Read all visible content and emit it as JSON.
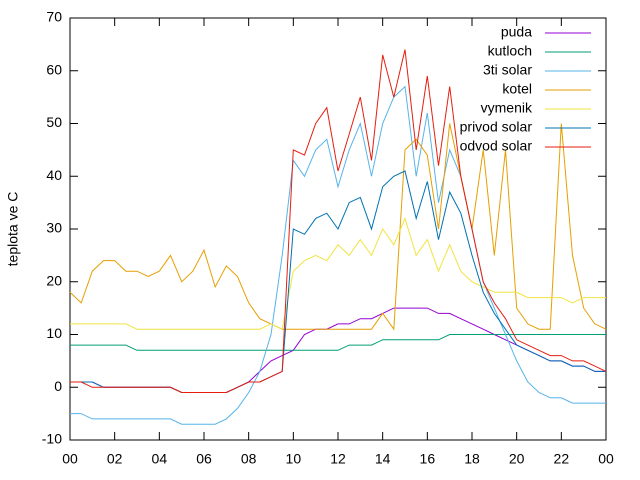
{
  "chart_data": {
    "type": "line",
    "y_label": "teplota ve C",
    "x": [
      0,
      0.5,
      1,
      1.5,
      2,
      2.5,
      3,
      3.5,
      4,
      4.5,
      5,
      5.5,
      6,
      6.5,
      7,
      7.5,
      8,
      8.5,
      9,
      9.5,
      10,
      10.5,
      11,
      11.5,
      12,
      12.5,
      13,
      13.5,
      14,
      14.5,
      15,
      15.5,
      16,
      16.5,
      17,
      17.5,
      18,
      18.5,
      19,
      19.5,
      20,
      20.5,
      21,
      21.5,
      22,
      22.5,
      23,
      23.5,
      24
    ],
    "series": [
      {
        "name": "puda",
        "color": "#9400d3",
        "values": [
          1,
          1,
          1,
          0,
          0,
          0,
          0,
          0,
          0,
          0,
          -1,
          -1,
          -1,
          -1,
          -1,
          0,
          1,
          3,
          5,
          6,
          7,
          10,
          11,
          11,
          12,
          12,
          13,
          13,
          14,
          15,
          15,
          15,
          15,
          14,
          14,
          13,
          12,
          11,
          10,
          9,
          8,
          7,
          6,
          5,
          5,
          4,
          4,
          3,
          3
        ]
      },
      {
        "name": "kutloch",
        "color": "#009e73",
        "values": [
          8,
          8,
          8,
          8,
          8,
          8,
          7,
          7,
          7,
          7,
          7,
          7,
          7,
          7,
          7,
          7,
          7,
          7,
          7,
          7,
          7,
          7,
          7,
          7,
          7,
          8,
          8,
          8,
          9,
          9,
          9,
          9,
          9,
          9,
          10,
          10,
          10,
          10,
          10,
          10,
          10,
          10,
          10,
          10,
          10,
          10,
          10,
          10,
          10
        ]
      },
      {
        "name": "3ti solar",
        "color": "#56b4e9",
        "values": [
          -5,
          -5,
          -6,
          -6,
          -6,
          -6,
          -6,
          -6,
          -6,
          -6,
          -7,
          -7,
          -7,
          -7,
          -6,
          -4,
          -1,
          3,
          10,
          25,
          43,
          40,
          45,
          47,
          38,
          45,
          50,
          40,
          50,
          55,
          57,
          40,
          52,
          35,
          45,
          40,
          30,
          20,
          15,
          10,
          5,
          1,
          -1,
          -2,
          -2,
          -3,
          -3,
          -3,
          -3
        ]
      },
      {
        "name": "kotel",
        "color": "#e69f00",
        "values": [
          18,
          16,
          22,
          24,
          24,
          22,
          22,
          21,
          22,
          25,
          20,
          22,
          26,
          19,
          23,
          21,
          16,
          13,
          12,
          11,
          11,
          11,
          11,
          11,
          11,
          11,
          11,
          11,
          14,
          11,
          45,
          47,
          44,
          30,
          50,
          40,
          30,
          45,
          25,
          45,
          15,
          12,
          11,
          11,
          50,
          25,
          15,
          12,
          11
        ]
      },
      {
        "name": "vymenik",
        "color": "#f0e442",
        "values": [
          12,
          12,
          12,
          12,
          12,
          12,
          11,
          11,
          11,
          11,
          11,
          11,
          11,
          11,
          11,
          11,
          11,
          11,
          12,
          11,
          22,
          24,
          25,
          24,
          27,
          25,
          28,
          25,
          30,
          27,
          32,
          25,
          28,
          22,
          27,
          22,
          20,
          19,
          18,
          18,
          18,
          17,
          17,
          17,
          17,
          16,
          17,
          17,
          17
        ]
      },
      {
        "name": "privod solar",
        "color": "#0072b2",
        "values": [
          1,
          1,
          1,
          0,
          0,
          0,
          0,
          0,
          0,
          0,
          -1,
          -1,
          -1,
          -1,
          -1,
          0,
          1,
          1,
          2,
          3,
          30,
          29,
          32,
          33,
          30,
          35,
          36,
          30,
          38,
          40,
          41,
          32,
          39,
          28,
          37,
          33,
          25,
          18,
          14,
          11,
          8,
          7,
          6,
          5,
          5,
          4,
          4,
          3,
          3
        ]
      },
      {
        "name": "odvod solar",
        "color": "#e51e10",
        "values": [
          1,
          1,
          0,
          0,
          0,
          0,
          0,
          0,
          0,
          0,
          -1,
          -1,
          -1,
          -1,
          -1,
          0,
          1,
          1,
          2,
          3,
          45,
          44,
          50,
          53,
          41,
          48,
          55,
          43,
          63,
          55,
          64,
          45,
          59,
          42,
          57,
          40,
          30,
          20,
          16,
          13,
          9,
          8,
          7,
          6,
          6,
          5,
          5,
          4,
          3
        ]
      }
    ],
    "xlim": [
      0,
      24
    ],
    "xticks": [
      {
        "value": 0,
        "label": "00"
      },
      {
        "value": 2,
        "label": "02"
      },
      {
        "value": 4,
        "label": "04"
      },
      {
        "value": 6,
        "label": "06"
      },
      {
        "value": 8,
        "label": "08"
      },
      10,
      12,
      14,
      16,
      18,
      20,
      22,
      {
        "value": 24,
        "label": "00"
      }
    ],
    "ylim": [
      -10,
      70
    ],
    "yticks": [
      -10,
      0,
      10,
      20,
      30,
      40,
      50,
      60,
      70
    ],
    "legend": "top right"
  }
}
